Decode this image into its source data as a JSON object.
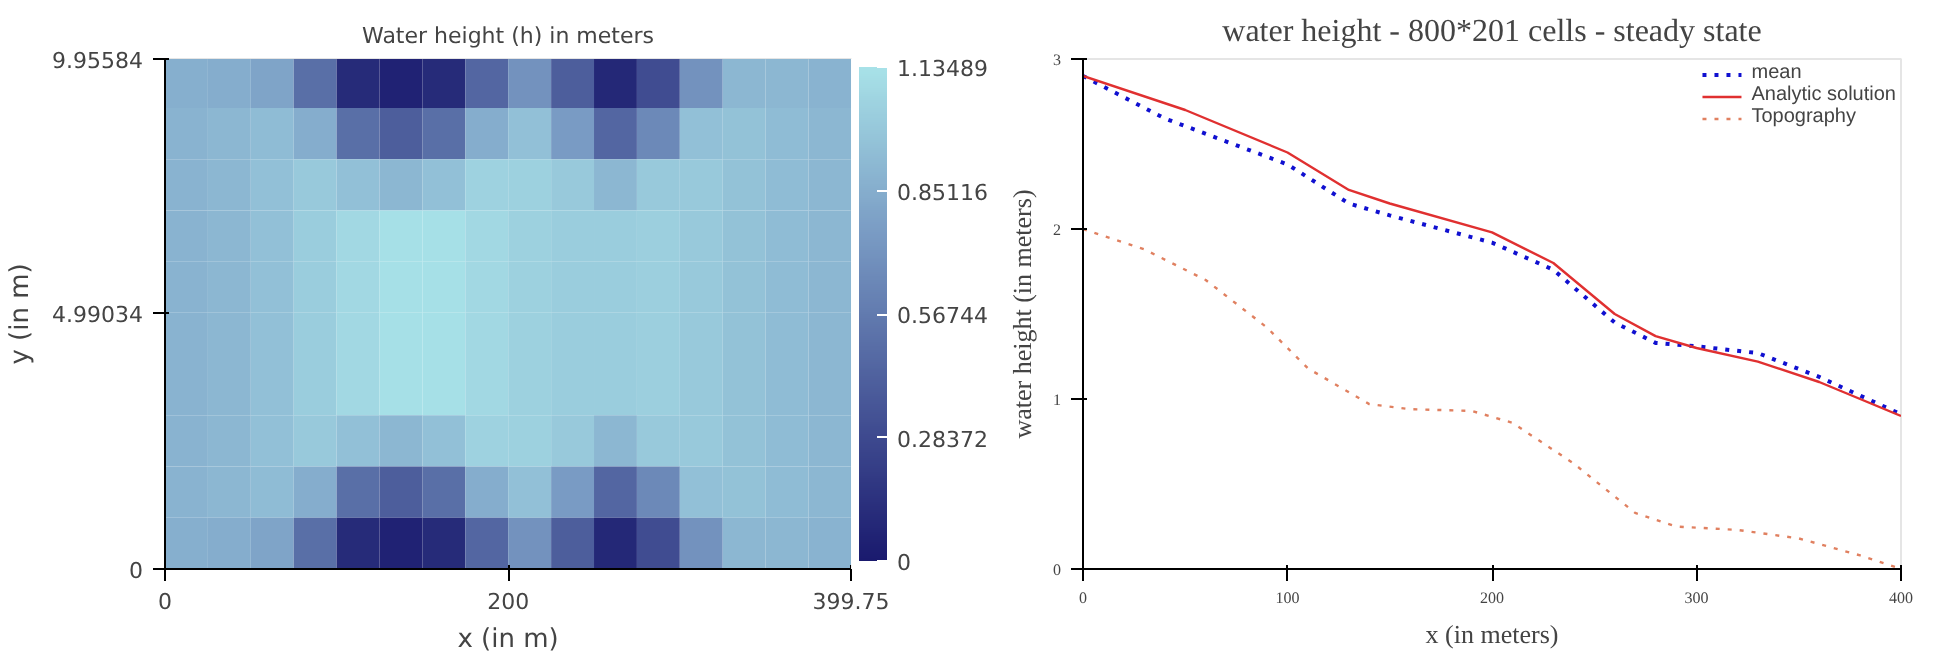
{
  "chart_data": [
    {
      "type": "heatmap",
      "title": "Water height (h) in meters",
      "xlabel": "x (in m)",
      "ylabel": "y (in m)",
      "x": [
        12.5,
        37.5,
        62.5,
        87.5,
        112.5,
        137.5,
        162.5,
        187.5,
        212.5,
        237.5,
        262.5,
        287.5,
        312.5,
        337.5,
        362.5,
        387.5
      ],
      "y": [
        9.5,
        8.5,
        7.5,
        6.5,
        5.5,
        4.5,
        3.5,
        2.5,
        1.5,
        0.5
      ],
      "cells": [
        [
          0.86,
          0.85,
          0.8,
          0.5,
          0.1,
          0.05,
          0.1,
          0.45,
          0.7,
          0.4,
          0.08,
          0.3,
          0.7,
          0.9,
          0.9,
          0.88
        ],
        [
          0.88,
          0.9,
          0.93,
          0.85,
          0.5,
          0.4,
          0.5,
          0.85,
          0.95,
          0.75,
          0.45,
          0.65,
          0.95,
          0.96,
          0.93,
          0.9
        ],
        [
          0.88,
          0.9,
          0.95,
          1.0,
          0.95,
          0.9,
          0.95,
          1.05,
          1.04,
          1.0,
          0.9,
          1.0,
          1.0,
          0.96,
          0.93,
          0.9
        ],
        [
          0.88,
          0.9,
          0.95,
          1.02,
          1.08,
          1.12,
          1.12,
          1.08,
          1.04,
          1.02,
          1.02,
          1.03,
          1.0,
          0.96,
          0.93,
          0.9
        ],
        [
          0.88,
          0.9,
          0.95,
          1.02,
          1.08,
          1.12,
          1.12,
          1.08,
          1.04,
          1.02,
          1.02,
          1.03,
          1.0,
          0.96,
          0.93,
          0.9
        ],
        [
          0.88,
          0.9,
          0.95,
          1.02,
          1.08,
          1.12,
          1.12,
          1.08,
          1.04,
          1.02,
          1.02,
          1.03,
          1.0,
          0.96,
          0.93,
          0.9
        ],
        [
          0.88,
          0.9,
          0.95,
          1.02,
          1.08,
          1.12,
          1.12,
          1.08,
          1.04,
          1.02,
          1.02,
          1.03,
          1.0,
          0.96,
          0.93,
          0.9
        ],
        [
          0.88,
          0.9,
          0.95,
          1.0,
          0.95,
          0.9,
          0.95,
          1.05,
          1.04,
          1.0,
          0.9,
          1.0,
          1.0,
          0.96,
          0.93,
          0.9
        ],
        [
          0.88,
          0.9,
          0.93,
          0.85,
          0.5,
          0.4,
          0.5,
          0.85,
          0.95,
          0.75,
          0.45,
          0.65,
          0.95,
          0.96,
          0.93,
          0.9
        ],
        [
          0.86,
          0.85,
          0.8,
          0.5,
          0.1,
          0.05,
          0.1,
          0.45,
          0.7,
          0.4,
          0.08,
          0.3,
          0.7,
          0.9,
          0.9,
          0.88
        ]
      ],
      "xlim": [
        0,
        399.75
      ],
      "xticks": [
        0,
        200,
        399.75
      ],
      "ylim": [
        0,
        9.95584
      ],
      "yticks": [
        0,
        4.99034,
        9.95584
      ],
      "clim": [
        0,
        1.13489
      ],
      "cticks": [
        0,
        0.28372,
        0.56744,
        0.85116,
        1.13489
      ]
    },
    {
      "type": "line",
      "title": "water height - 800*201 cells - steady state",
      "xlabel": "x (in meters)",
      "ylabel": "water height (in meters)",
      "xlim": [
        0,
        400
      ],
      "xticks": [
        0,
        100,
        200,
        300,
        400
      ],
      "ylim": [
        0,
        3
      ],
      "yticks": [
        0,
        1,
        2,
        3
      ],
      "legend": "top right",
      "series": [
        {
          "name": "mean",
          "color": "#1010d0",
          "line_style": "dotted",
          "x": [
            0,
            40,
            80,
            100,
            130,
            150,
            200,
            230,
            260,
            280,
            300,
            330,
            360,
            400
          ],
          "values": [
            2.9,
            2.65,
            2.47,
            2.38,
            2.15,
            2.08,
            1.92,
            1.76,
            1.45,
            1.33,
            1.31,
            1.27,
            1.13,
            0.91
          ]
        },
        {
          "name": "Analytic solution",
          "color": "#e03030",
          "line_style": "solid",
          "x": [
            0,
            50,
            100,
            130,
            150,
            200,
            230,
            260,
            280,
            300,
            330,
            360,
            400
          ],
          "values": [
            2.9,
            2.7,
            2.45,
            2.23,
            2.15,
            1.98,
            1.8,
            1.5,
            1.37,
            1.3,
            1.22,
            1.1,
            0.9
          ]
        },
        {
          "name": "Topography",
          "color": "#e08060",
          "line_style": "dotted",
          "x": [
            0,
            30,
            60,
            90,
            110,
            140,
            160,
            190,
            210,
            240,
            270,
            290,
            320,
            350,
            380,
            400
          ],
          "values": [
            2.0,
            1.88,
            1.7,
            1.42,
            1.18,
            0.97,
            0.94,
            0.93,
            0.86,
            0.62,
            0.33,
            0.25,
            0.23,
            0.18,
            0.08,
            0.0
          ]
        }
      ]
    }
  ]
}
